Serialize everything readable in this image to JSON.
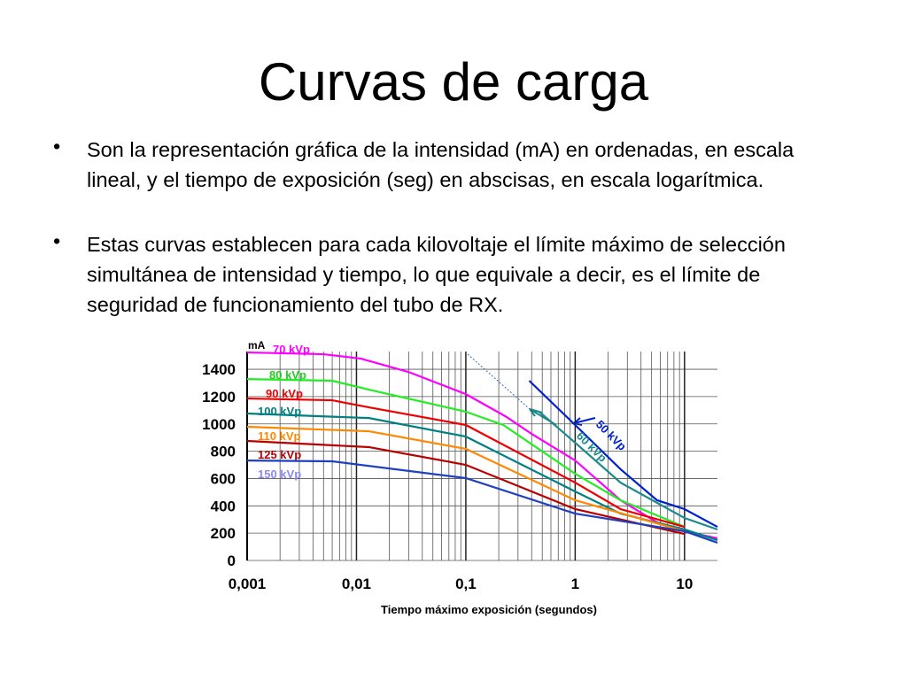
{
  "header": {
    "title": "Curvas de carga"
  },
  "bullets": [
    "Son la representación gráfica de la intensidad (mA) en ordenadas, en escala lineal, y el tiempo de exposición (seg) en abscisas, en escala logarítmica.",
    "Estas curvas establecen para cada kilovoltaje el límite máximo de selección simultánea de intensidad y tiempo, lo que equivale a decir, es el límite de seguridad de funcionamiento del tubo de RX."
  ],
  "chart_data": {
    "type": "line",
    "ylabel": "mA",
    "xlabel": "Tiempo máximo exposición (segundos)",
    "xscale": "log",
    "xlim": [
      0.001,
      20
    ],
    "ylim": [
      0,
      1530
    ],
    "xticks": [
      {
        "value": 0.001,
        "label": "0,001"
      },
      {
        "value": 0.01,
        "label": "0,01"
      },
      {
        "value": 0.1,
        "label": "0,1"
      },
      1,
      10
    ],
    "yticks": [
      0,
      200,
      400,
      600,
      800,
      1000,
      1200,
      1400
    ],
    "grid": true,
    "minor_grid": true,
    "series": [
      {
        "name": "70 kVp",
        "color": "#ff00ff",
        "x": [
          0.001,
          0.005,
          0.011,
          0.03,
          0.1,
          0.23,
          0.4,
          1,
          2.6,
          5.6,
          10,
          20
        ],
        "values": [
          1523,
          1510,
          1478,
          1380,
          1218,
          1056,
          927,
          732,
          441,
          279,
          214,
          162
        ]
      },
      {
        "name": "80 kVp",
        "color": "#22ee22",
        "x": [
          0.001,
          0.006,
          0.013,
          0.1,
          0.22,
          1,
          2.6,
          10
        ],
        "values": [
          1328,
          1316,
          1251,
          1089,
          992,
          635,
          441,
          246
        ]
      },
      {
        "name": "90 kVp",
        "color": "#ee0000",
        "x": [
          0.001,
          0.006,
          0.013,
          0.1,
          1,
          2.6,
          10
        ],
        "values": [
          1186,
          1173,
          1121,
          992,
          570,
          376,
          246
        ]
      },
      {
        "name": "100 kVp",
        "color": "#008080",
        "x": [
          0.001,
          0.013,
          0.1,
          1,
          2.6,
          10,
          20
        ],
        "values": [
          1076,
          1043,
          907,
          505,
          343,
          227,
          149
        ]
      },
      {
        "name": "110 kVp",
        "color": "#ff8800",
        "x": [
          0.001,
          0.013,
          0.1,
          1,
          10
        ],
        "values": [
          979,
          946,
          817,
          441,
          214
        ]
      },
      {
        "name": "125 kVp",
        "color": "#b80000",
        "x": [
          0.001,
          0.013,
          0.1,
          1,
          10
        ],
        "values": [
          875,
          830,
          700,
          376,
          194
        ]
      },
      {
        "name": "150 kVp",
        "color": "#1f3fbf",
        "x": [
          0.001,
          0.006,
          0.1,
          1,
          10,
          20
        ],
        "values": [
          732,
          726,
          603,
          343,
          214,
          130
        ]
      },
      {
        "name": "50 kVp",
        "color": "#0022cc",
        "x": [
          0.38,
          1,
          2.6,
          5.6,
          10,
          20
        ],
        "values": [
          1316,
          992,
          668,
          441,
          376,
          246
        ]
      },
      {
        "name": "60 kVp",
        "color": "#1a8a8a",
        "x": [
          0.47,
          1,
          2.6,
          10,
          20
        ],
        "values": [
          1089,
          862,
          570,
          311,
          227
        ]
      }
    ]
  }
}
